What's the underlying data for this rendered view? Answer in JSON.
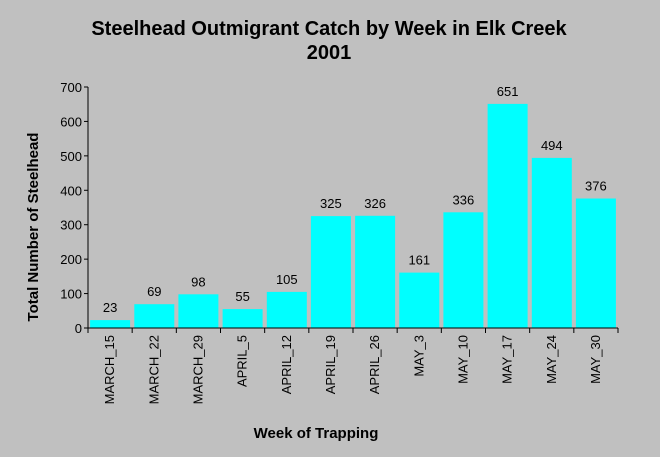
{
  "chart_data": {
    "type": "bar",
    "title": "Steelhead Outmigrant Catch by Week in Elk Creek",
    "subtitle": "2001",
    "xlabel": "Week of Trapping",
    "ylabel": "Total Number of Steelhead",
    "categories": [
      "MARCH_15",
      "MARCH_22",
      "MARCH_29",
      "APRIL_5",
      "APRIL_12",
      "APRIL_19",
      "APRIL_26",
      "MAY_3",
      "MAY_10",
      "MAY_17",
      "MAY_24",
      "MAY_30"
    ],
    "values": [
      23,
      69,
      98,
      55,
      105,
      325,
      326,
      161,
      336,
      651,
      494,
      376
    ],
    "ylim": [
      0,
      700
    ],
    "yticks": [
      0,
      100,
      200,
      300,
      400,
      500,
      600,
      700
    ],
    "grid": false,
    "legend": "none",
    "colors": {
      "background": "#c0c0c0",
      "bar": "#00ffff",
      "axis": "#000000"
    }
  }
}
